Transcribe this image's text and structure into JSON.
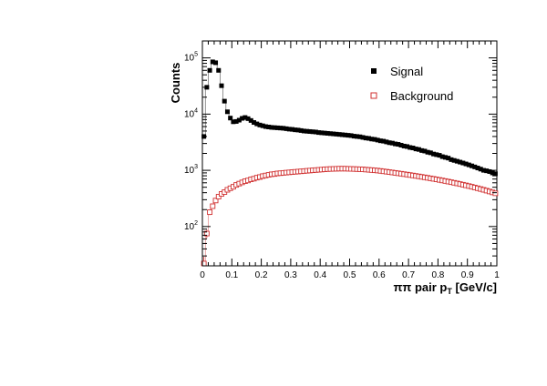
{
  "chart_data": {
    "type": "scatter",
    "xlabel": "ππ pair p",
    "xlabel_subscript": "T",
    "xlabel_unit": " [GeV/c]",
    "ylabel": "Counts",
    "xlim": [
      0,
      1
    ],
    "ylim": [
      20,
      200000
    ],
    "y_scale": "log",
    "x_ticks": [
      "0",
      "0.1",
      "0.2",
      "0.3",
      "0.4",
      "0.5",
      "0.6",
      "0.7",
      "0.8",
      "0.9",
      "1"
    ],
    "y_ticks": [
      {
        "base": "10",
        "exp": "2",
        "value": 100
      },
      {
        "base": "10",
        "exp": "3",
        "value": 1000
      },
      {
        "base": "10",
        "exp": "4",
        "value": 10000
      },
      {
        "base": "10",
        "exp": "5",
        "value": 100000
      }
    ],
    "grid": false,
    "legend_position": "top-right",
    "series": [
      {
        "name": "Signal",
        "marker": "filled-square",
        "color": "#000000",
        "x": [
          0.005,
          0.015,
          0.025,
          0.035,
          0.045,
          0.055,
          0.065,
          0.075,
          0.085,
          0.095,
          0.105,
          0.115,
          0.125,
          0.135,
          0.145,
          0.155,
          0.165,
          0.175,
          0.185,
          0.195,
          0.205,
          0.215,
          0.225,
          0.235,
          0.245,
          0.255,
          0.265,
          0.275,
          0.285,
          0.295,
          0.305,
          0.315,
          0.325,
          0.335,
          0.345,
          0.355,
          0.365,
          0.375,
          0.385,
          0.395,
          0.405,
          0.415,
          0.425,
          0.435,
          0.445,
          0.455,
          0.465,
          0.475,
          0.485,
          0.495,
          0.505,
          0.515,
          0.525,
          0.535,
          0.545,
          0.555,
          0.565,
          0.575,
          0.585,
          0.595,
          0.605,
          0.615,
          0.625,
          0.635,
          0.645,
          0.655,
          0.665,
          0.675,
          0.685,
          0.695,
          0.705,
          0.715,
          0.725,
          0.735,
          0.745,
          0.755,
          0.765,
          0.775,
          0.785,
          0.795,
          0.805,
          0.815,
          0.825,
          0.835,
          0.845,
          0.855,
          0.865,
          0.875,
          0.885,
          0.895,
          0.905,
          0.915,
          0.925,
          0.935,
          0.945,
          0.955,
          0.965,
          0.975,
          0.985,
          0.995
        ],
        "y": [
          4000,
          30000,
          60000,
          85000,
          82000,
          60000,
          32000,
          17000,
          11000,
          8500,
          7300,
          7400,
          7800,
          8400,
          8700,
          8300,
          7700,
          7100,
          6700,
          6400,
          6200,
          6000,
          5900,
          5800,
          5750,
          5700,
          5650,
          5600,
          5500,
          5400,
          5350,
          5250,
          5200,
          5100,
          5000,
          4950,
          4900,
          4850,
          4800,
          4700,
          4650,
          4600,
          4550,
          4500,
          4450,
          4400,
          4350,
          4300,
          4250,
          4200,
          4150,
          4050,
          4000,
          3950,
          3850,
          3750,
          3700,
          3600,
          3550,
          3450,
          3350,
          3300,
          3200,
          3100,
          3050,
          2950,
          2900,
          2800,
          2700,
          2650,
          2550,
          2500,
          2400,
          2350,
          2250,
          2200,
          2100,
          2050,
          1950,
          1900,
          1850,
          1750,
          1700,
          1650,
          1550,
          1500,
          1450,
          1400,
          1350,
          1300,
          1250,
          1200,
          1150,
          1100,
          1050,
          1000,
          980,
          950,
          900,
          870
        ]
      },
      {
        "name": "Background",
        "marker": "open-square",
        "color": "#d03030",
        "x": [
          0.005,
          0.015,
          0.025,
          0.035,
          0.045,
          0.055,
          0.065,
          0.075,
          0.085,
          0.095,
          0.105,
          0.115,
          0.125,
          0.135,
          0.145,
          0.155,
          0.165,
          0.175,
          0.185,
          0.195,
          0.205,
          0.215,
          0.225,
          0.235,
          0.245,
          0.255,
          0.265,
          0.275,
          0.285,
          0.295,
          0.305,
          0.315,
          0.325,
          0.335,
          0.345,
          0.355,
          0.365,
          0.375,
          0.385,
          0.395,
          0.405,
          0.415,
          0.425,
          0.435,
          0.445,
          0.455,
          0.465,
          0.475,
          0.485,
          0.495,
          0.505,
          0.515,
          0.525,
          0.535,
          0.545,
          0.555,
          0.565,
          0.575,
          0.585,
          0.595,
          0.605,
          0.615,
          0.625,
          0.635,
          0.645,
          0.655,
          0.665,
          0.675,
          0.685,
          0.695,
          0.705,
          0.715,
          0.725,
          0.735,
          0.745,
          0.755,
          0.765,
          0.775,
          0.785,
          0.795,
          0.805,
          0.815,
          0.825,
          0.835,
          0.845,
          0.855,
          0.865,
          0.875,
          0.885,
          0.895,
          0.905,
          0.915,
          0.925,
          0.935,
          0.945,
          0.955,
          0.965,
          0.975,
          0.985,
          0.995
        ],
        "y": [
          22,
          75,
          180,
          230,
          290,
          340,
          380,
          410,
          450,
          480,
          510,
          550,
          580,
          610,
          640,
          660,
          690,
          710,
          740,
          760,
          790,
          810,
          830,
          850,
          860,
          880,
          890,
          900,
          910,
          920,
          930,
          940,
          950,
          960,
          970,
          980,
          990,
          1000,
          1010,
          1020,
          1030,
          1040,
          1050,
          1055,
          1060,
          1065,
          1070,
          1070,
          1070,
          1065,
          1060,
          1055,
          1050,
          1045,
          1040,
          1030,
          1020,
          1010,
          1000,
          990,
          975,
          960,
          945,
          930,
          915,
          900,
          885,
          870,
          855,
          840,
          825,
          810,
          795,
          780,
          765,
          750,
          735,
          720,
          705,
          690,
          675,
          660,
          645,
          630,
          615,
          600,
          585,
          570,
          555,
          540,
          525,
          510,
          495,
          480,
          465,
          450,
          435,
          420,
          405,
          390
        ]
      }
    ]
  }
}
